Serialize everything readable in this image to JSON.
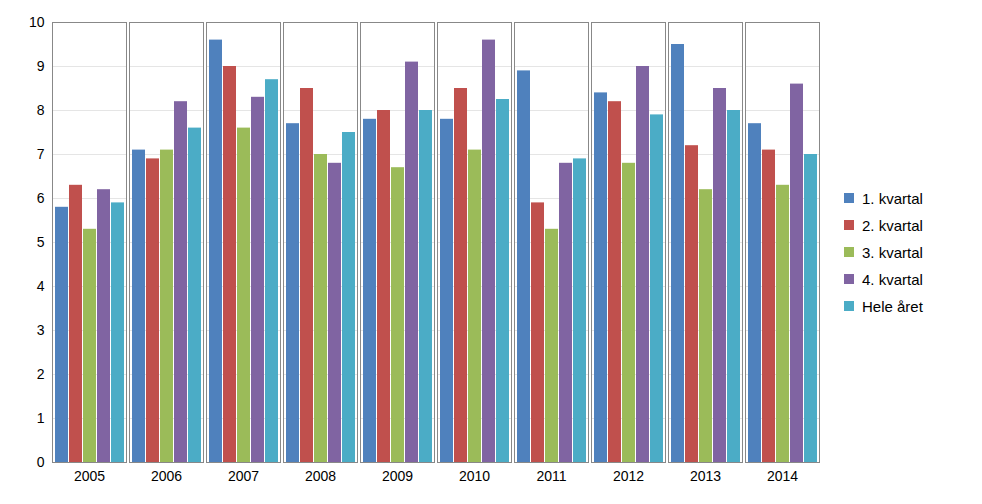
{
  "chart_data": {
    "type": "bar",
    "categories": [
      "2005",
      "2006",
      "2007",
      "2008",
      "2009",
      "2010",
      "2011",
      "2012",
      "2013",
      "2014"
    ],
    "series": [
      {
        "name": "1. kvartal",
        "color": "#4f81bd",
        "values": [
          5.8,
          7.1,
          9.6,
          7.7,
          7.8,
          7.8,
          8.9,
          8.4,
          9.5,
          7.7
        ]
      },
      {
        "name": "2. kvartal",
        "color": "#c0504d",
        "values": [
          6.3,
          6.9,
          9.0,
          8.5,
          8.0,
          8.5,
          5.9,
          8.2,
          7.2,
          7.1
        ]
      },
      {
        "name": "3. kvartal",
        "color": "#9bbb59",
        "values": [
          5.3,
          7.1,
          7.6,
          7.0,
          6.7,
          7.1,
          5.3,
          6.8,
          6.2,
          6.3
        ]
      },
      {
        "name": "4. kvartal",
        "color": "#8064a2",
        "values": [
          6.2,
          8.2,
          8.3,
          6.8,
          9.1,
          9.6,
          6.8,
          9.0,
          8.5,
          8.6
        ]
      },
      {
        "name": "Hele året",
        "color": "#4bacc6",
        "values": [
          5.9,
          7.6,
          8.7,
          7.5,
          8.0,
          8.25,
          6.9,
          7.9,
          8.0,
          7.0
        ]
      }
    ],
    "ylim": [
      0,
      10
    ],
    "yticks": [
      0,
      1,
      2,
      3,
      4,
      5,
      6,
      7,
      8,
      9,
      10
    ],
    "grid": true,
    "legend": "right"
  }
}
